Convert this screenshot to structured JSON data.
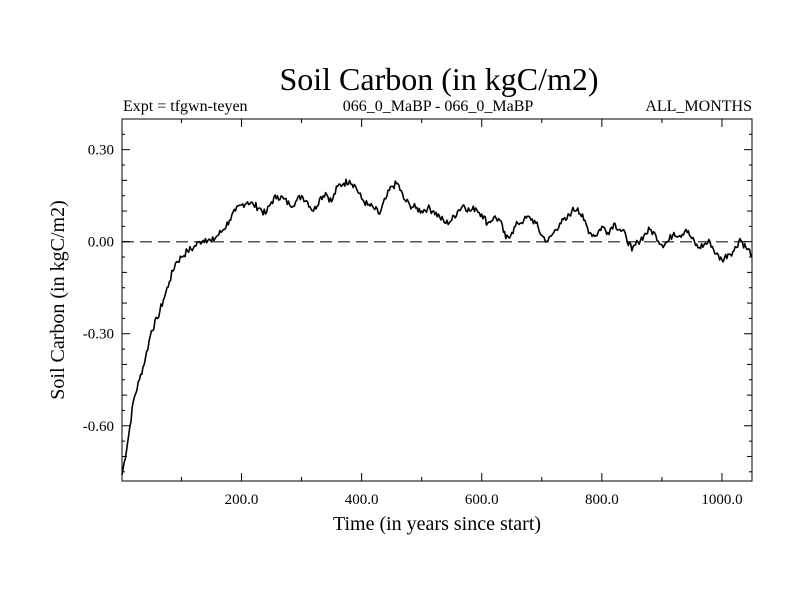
{
  "chart_data": {
    "type": "line",
    "title": "Soil Carbon (in kgC/m2)",
    "subtitle_left": "Expt = tfgwn-teyen",
    "subtitle_center": "066_0_MaBP - 066_0_MaBP",
    "subtitle_right": "ALL_MONTHS",
    "xlabel": "Time (in years since start)",
    "ylabel": "Soil Carbon (in kgC/m2)",
    "xlim": [
      1,
      1050
    ],
    "ylim": [
      -0.78,
      0.4
    ],
    "x_ticks": [
      200,
      400,
      600,
      800,
      1000
    ],
    "x_tick_labels": [
      "200.0",
      "400.0",
      "600.0",
      "800.0",
      "1000.0"
    ],
    "y_ticks": [
      0.3,
      0.0,
      -0.3,
      -0.6
    ],
    "y_tick_labels": [
      "0.30",
      "0.00",
      "-0.30",
      "-0.60"
    ],
    "reference_line": {
      "y": 0.0,
      "style": "dashed"
    },
    "series": [
      {
        "name": "Soil Carbon",
        "color": "#000000",
        "x": [
          1,
          10,
          20,
          30,
          40,
          50,
          60,
          70,
          80,
          90,
          100,
          110,
          120,
          130,
          140,
          150,
          160,
          170,
          180,
          190,
          200,
          210,
          220,
          230,
          240,
          250,
          260,
          270,
          280,
          290,
          300,
          310,
          320,
          330,
          340,
          350,
          360,
          370,
          380,
          390,
          400,
          410,
          420,
          430,
          440,
          450,
          460,
          470,
          480,
          490,
          500,
          510,
          520,
          530,
          540,
          550,
          560,
          570,
          580,
          590,
          600,
          610,
          620,
          630,
          640,
          650,
          660,
          670,
          680,
          690,
          700,
          710,
          720,
          730,
          740,
          750,
          760,
          770,
          780,
          790,
          800,
          810,
          820,
          830,
          840,
          850,
          860,
          870,
          880,
          890,
          900,
          910,
          920,
          930,
          940,
          950,
          960,
          970,
          980,
          990,
          1000,
          1010,
          1020,
          1030,
          1040,
          1050
        ],
        "values": [
          -0.76,
          -0.66,
          -0.52,
          -0.45,
          -0.38,
          -0.29,
          -0.25,
          -0.19,
          -0.13,
          -0.07,
          -0.05,
          -0.03,
          -0.02,
          0.0,
          0.01,
          0.0,
          0.02,
          0.04,
          0.07,
          0.1,
          0.12,
          0.13,
          0.12,
          0.11,
          0.09,
          0.13,
          0.15,
          0.14,
          0.12,
          0.13,
          0.15,
          0.13,
          0.1,
          0.14,
          0.16,
          0.13,
          0.18,
          0.19,
          0.2,
          0.18,
          0.14,
          0.12,
          0.11,
          0.09,
          0.14,
          0.18,
          0.19,
          0.14,
          0.12,
          0.11,
          0.1,
          0.11,
          0.1,
          0.08,
          0.06,
          0.07,
          0.1,
          0.12,
          0.1,
          0.11,
          0.09,
          0.06,
          0.08,
          0.07,
          0.01,
          0.03,
          0.06,
          0.07,
          0.08,
          0.06,
          0.02,
          0.0,
          0.03,
          0.06,
          0.07,
          0.1,
          0.11,
          0.07,
          0.03,
          0.02,
          0.05,
          0.03,
          0.06,
          0.04,
          0.02,
          -0.03,
          0.0,
          0.02,
          0.04,
          0.02,
          -0.01,
          0.0,
          0.03,
          0.02,
          0.04,
          0.01,
          -0.02,
          -0.01,
          0.0,
          -0.04,
          -0.06,
          -0.04,
          -0.03,
          0.01,
          -0.02,
          -0.04
        ]
      }
    ]
  }
}
